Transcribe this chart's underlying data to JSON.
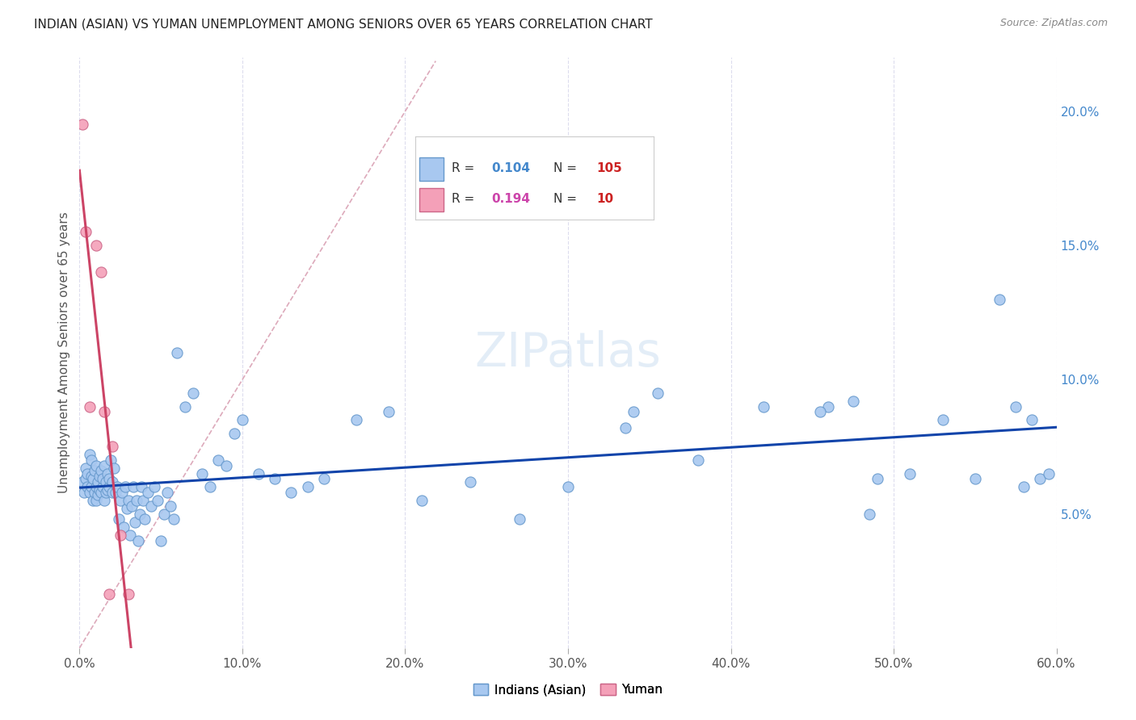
{
  "title": "INDIAN (ASIAN) VS YUMAN UNEMPLOYMENT AMONG SENIORS OVER 65 YEARS CORRELATION CHART",
  "source": "Source: ZipAtlas.com",
  "ylabel": "Unemployment Among Seniors over 65 years",
  "xlim": [
    0.0,
    0.6
  ],
  "ylim": [
    0.0,
    0.22
  ],
  "xticks": [
    0.0,
    0.1,
    0.2,
    0.3,
    0.4,
    0.5,
    0.6
  ],
  "xticklabels": [
    "0.0%",
    "10.0%",
    "20.0%",
    "30.0%",
    "40.0%",
    "50.0%",
    "60.0%"
  ],
  "yticks_right": [
    0.05,
    0.1,
    0.15,
    0.2
  ],
  "ytick_right_labels": [
    "5.0%",
    "10.0%",
    "15.0%",
    "20.0%"
  ],
  "R_asian": 0.104,
  "N_asian": 105,
  "R_yuman": 0.194,
  "N_yuman": 10,
  "color_asian": "#a8c8f0",
  "color_asian_edge": "#6699cc",
  "color_asian_line": "#1144aa",
  "color_yuman": "#f4a0b8",
  "color_yuman_edge": "#cc6688",
  "color_yuman_line": "#cc4466",
  "color_diag_line": "#ddaabb",
  "background_color": "#ffffff",
  "grid_color": "#ddddee",
  "asian_x": [
    0.002,
    0.003,
    0.004,
    0.004,
    0.005,
    0.005,
    0.006,
    0.006,
    0.007,
    0.007,
    0.007,
    0.008,
    0.008,
    0.009,
    0.009,
    0.01,
    0.01,
    0.01,
    0.011,
    0.011,
    0.012,
    0.012,
    0.013,
    0.013,
    0.014,
    0.014,
    0.015,
    0.015,
    0.016,
    0.016,
    0.017,
    0.017,
    0.018,
    0.018,
    0.019,
    0.02,
    0.02,
    0.021,
    0.022,
    0.023,
    0.024,
    0.025,
    0.026,
    0.027,
    0.028,
    0.029,
    0.03,
    0.031,
    0.032,
    0.033,
    0.034,
    0.035,
    0.036,
    0.037,
    0.038,
    0.039,
    0.04,
    0.042,
    0.044,
    0.046,
    0.048,
    0.05,
    0.052,
    0.054,
    0.056,
    0.058,
    0.06,
    0.065,
    0.07,
    0.075,
    0.08,
    0.085,
    0.09,
    0.095,
    0.1,
    0.11,
    0.12,
    0.13,
    0.14,
    0.15,
    0.17,
    0.19,
    0.21,
    0.24,
    0.27,
    0.3,
    0.34,
    0.38,
    0.42,
    0.46,
    0.49,
    0.51,
    0.53,
    0.55,
    0.565,
    0.575,
    0.58,
    0.585,
    0.59,
    0.595,
    0.335,
    0.455,
    0.355,
    0.475,
    0.485
  ],
  "asian_y": [
    0.062,
    0.058,
    0.063,
    0.067,
    0.06,
    0.065,
    0.058,
    0.072,
    0.06,
    0.064,
    0.07,
    0.055,
    0.063,
    0.058,
    0.066,
    0.06,
    0.055,
    0.068,
    0.057,
    0.062,
    0.059,
    0.064,
    0.058,
    0.066,
    0.06,
    0.063,
    0.055,
    0.068,
    0.058,
    0.062,
    0.059,
    0.065,
    0.06,
    0.063,
    0.07,
    0.058,
    0.062,
    0.067,
    0.058,
    0.06,
    0.048,
    0.055,
    0.058,
    0.045,
    0.06,
    0.052,
    0.055,
    0.042,
    0.053,
    0.06,
    0.047,
    0.055,
    0.04,
    0.05,
    0.06,
    0.055,
    0.048,
    0.058,
    0.053,
    0.06,
    0.055,
    0.04,
    0.05,
    0.058,
    0.053,
    0.048,
    0.11,
    0.09,
    0.095,
    0.065,
    0.06,
    0.07,
    0.068,
    0.08,
    0.085,
    0.065,
    0.063,
    0.058,
    0.06,
    0.063,
    0.085,
    0.088,
    0.055,
    0.062,
    0.048,
    0.06,
    0.088,
    0.07,
    0.09,
    0.09,
    0.063,
    0.065,
    0.085,
    0.063,
    0.13,
    0.09,
    0.06,
    0.085,
    0.063,
    0.065,
    0.082,
    0.088,
    0.095,
    0.092,
    0.05
  ],
  "yuman_x": [
    0.002,
    0.004,
    0.006,
    0.01,
    0.013,
    0.015,
    0.018,
    0.02,
    0.025,
    0.03
  ],
  "yuman_y": [
    0.195,
    0.155,
    0.09,
    0.15,
    0.14,
    0.088,
    0.02,
    0.075,
    0.042,
    0.02
  ],
  "legend_R_color_asian": "#4488cc",
  "legend_N_color_asian": "#cc2222",
  "legend_R_color_yuman": "#cc44aa",
  "legend_N_color_yuman": "#cc2222"
}
